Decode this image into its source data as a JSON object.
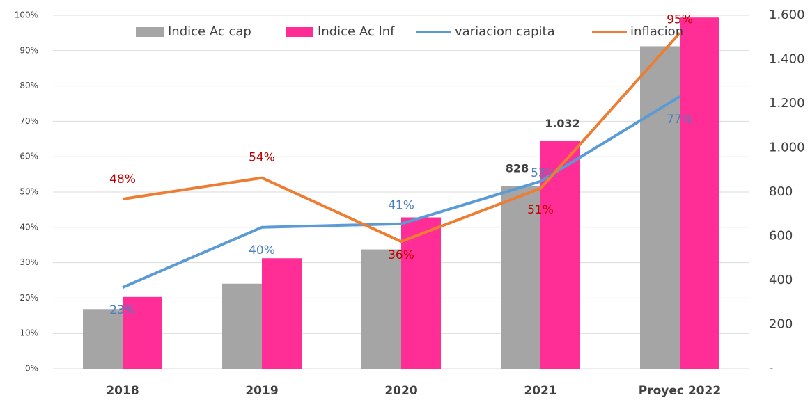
{
  "chart_data": {
    "type": "bar",
    "categories": [
      "2018",
      "2019",
      "2020",
      "2021",
      "Proyec 2022"
    ],
    "series": [
      {
        "name": "Indice Ac cap",
        "type": "bar",
        "axis": "y2",
        "color": "#a5a5a5",
        "values": [
          270,
          385,
          540,
          828,
          1460
        ],
        "value_labels": [
          null,
          null,
          null,
          "828",
          null
        ]
      },
      {
        "name": "Indice Ac Inf",
        "type": "bar",
        "axis": "y2",
        "color": "#ff2d95",
        "values": [
          325,
          500,
          685,
          1032,
          1590
        ],
        "value_labels": [
          null,
          null,
          null,
          "1.032",
          null
        ]
      },
      {
        "name": "variacion capita",
        "type": "line",
        "color": "#5b9bd5",
        "label_color": "#4a7fc0",
        "values": [
          23,
          40,
          41,
          53,
          77
        ],
        "value_labels": [
          "23%",
          "40%",
          "41%",
          "53%",
          "77%"
        ]
      },
      {
        "name": "inflacion",
        "type": "line",
        "color": "#ed7d31",
        "label_color": "#c00000",
        "values": [
          48,
          54,
          36,
          51,
          95
        ],
        "value_labels": [
          "48%",
          "54%",
          "36%",
          "51%",
          "95%"
        ]
      }
    ],
    "ylim": [
      0,
      100
    ],
    "yticks": [
      {
        "value": 0,
        "label": "0%"
      },
      {
        "value": 10,
        "label": "10%"
      },
      {
        "value": 20,
        "label": "20%"
      },
      {
        "value": 30,
        "label": "30%"
      },
      {
        "value": 40,
        "label": "40%"
      },
      {
        "value": 50,
        "label": "50%"
      },
      {
        "value": 60,
        "label": "60%"
      },
      {
        "value": 70,
        "label": "70%"
      },
      {
        "value": 80,
        "label": "80%"
      },
      {
        "value": 90,
        "label": "90%"
      },
      {
        "value": 100,
        "label": "100%"
      }
    ],
    "y2lim": [
      0,
      1600
    ],
    "y2ticks": [
      {
        "value": 0,
        "label": "-"
      },
      200,
      400,
      600,
      800,
      {
        "value": 1000,
        "label": "1.000"
      },
      {
        "value": 1200,
        "label": "1.200"
      },
      {
        "value": 1400,
        "label": "1.400"
      },
      {
        "value": 1600,
        "label": "1.600"
      }
    ],
    "grid": true,
    "legend": "top"
  }
}
